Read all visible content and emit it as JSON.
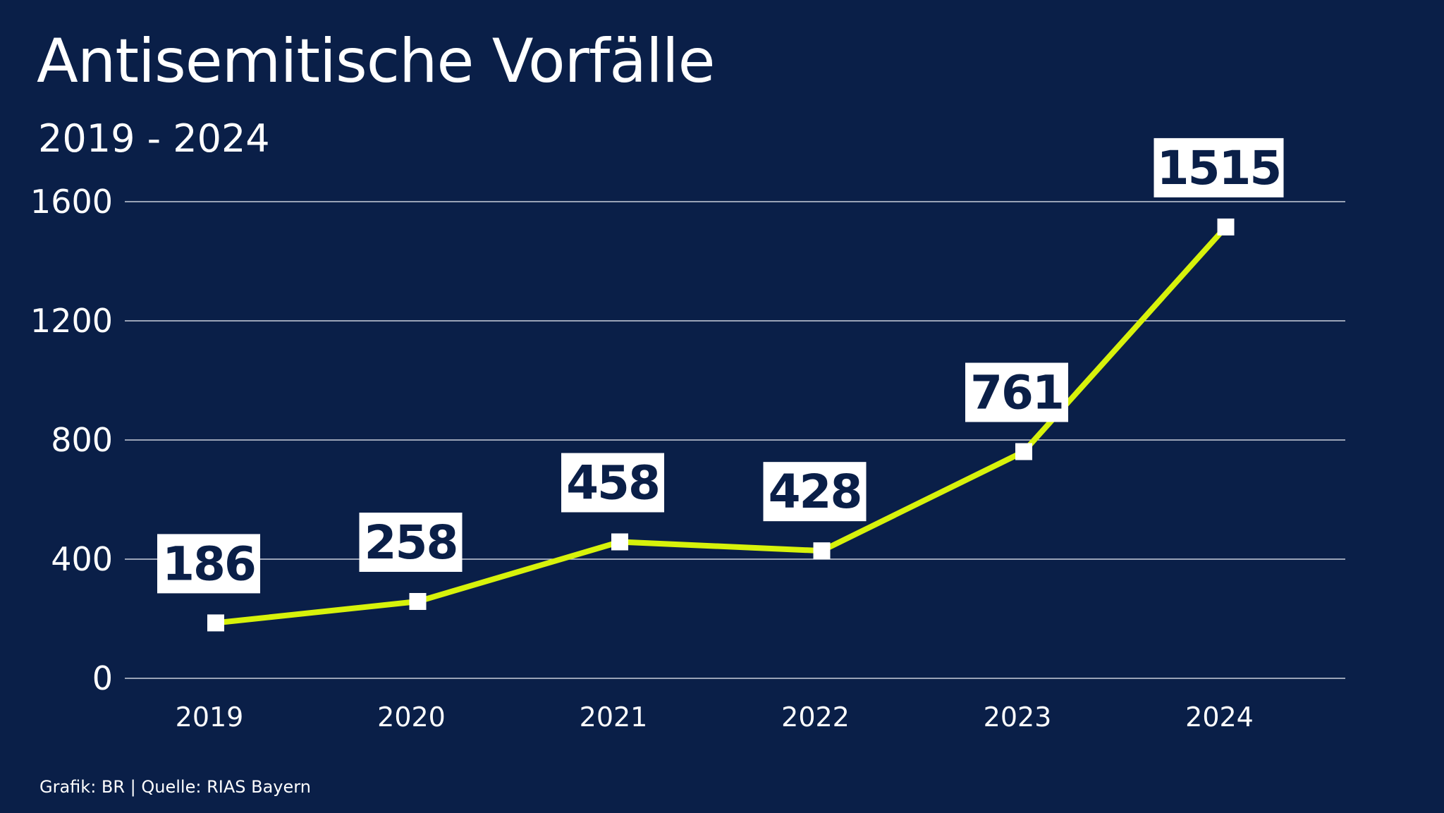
{
  "title": "Antisemitische Vorfälle",
  "subtitle": "2019 - 2024",
  "footer": "Grafik: BR | Quelle: RIAS Bayern",
  "colors": {
    "background": "#0a1f48",
    "line": "#d7f20b",
    "marker": "#ffffff",
    "label_box": "#ffffff",
    "label_text": "#0a1f48",
    "grid": "#c9cfdb"
  },
  "chart_data": {
    "type": "line",
    "title": "Antisemitische Vorfälle",
    "subtitle": "2019 - 2024",
    "categories": [
      "2019",
      "2020",
      "2021",
      "2022",
      "2023",
      "2024"
    ],
    "values": [
      186,
      258,
      458,
      428,
      761,
      1515
    ],
    "y_ticks": [
      0,
      400,
      800,
      1200,
      1600
    ],
    "ylim": [
      0,
      1600
    ],
    "grid": true,
    "legend": "none",
    "data_labels": [
      "186",
      "258",
      "458",
      "428",
      "761",
      "1515"
    ]
  }
}
